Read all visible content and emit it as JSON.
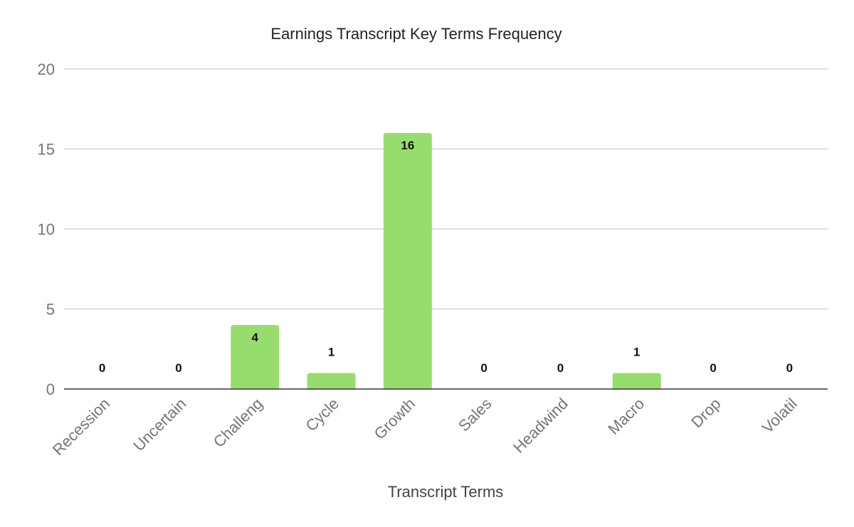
{
  "chart_data": {
    "type": "bar",
    "title": "Earnings Transcript Key Terms Frequency",
    "xlabel": "Transcript Terms",
    "ylabel": "",
    "categories": [
      "Recession",
      "Uncertain",
      "Challeng",
      "Cycle",
      "Growth",
      "Sales",
      "Headwind",
      "Macro",
      "Drop",
      "Volatil"
    ],
    "values": [
      0,
      0,
      4,
      1,
      16,
      0,
      0,
      1,
      0,
      0
    ],
    "ylim": [
      0,
      20
    ],
    "yticks": [
      0,
      5,
      10,
      15,
      20
    ],
    "bar_color": "#97dd6d",
    "grid": true,
    "legend": "none",
    "data_labels": true
  }
}
